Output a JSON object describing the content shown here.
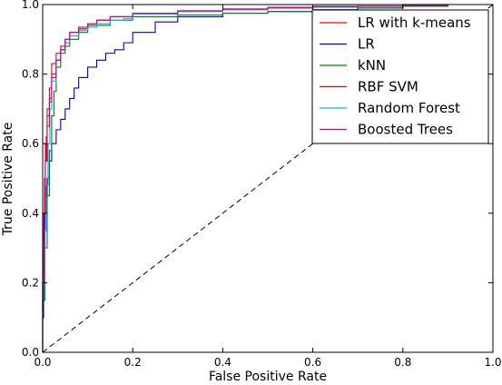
{
  "chart_data": {
    "type": "line",
    "title": "",
    "xlabel": "False Positive Rate",
    "ylabel": "True Positive Rate",
    "xlim": [
      0,
      1
    ],
    "ylim": [
      0,
      1
    ],
    "xticks": [
      "0.0",
      "0.2",
      "0.4",
      "0.6",
      "0.8",
      "1.0"
    ],
    "yticks": [
      "0.0",
      "0.2",
      "0.4",
      "0.6",
      "0.8",
      "1.0"
    ],
    "grid": false,
    "legend_position": "top-right",
    "reference_line": {
      "style": "dashed",
      "color": "#000000",
      "x": [
        0,
        1
      ],
      "y": [
        0,
        1
      ]
    },
    "series": [
      {
        "name": "LR with k-means",
        "color": "#ff0000",
        "x": [
          0,
          0.002,
          0.004,
          0.006,
          0.008,
          0.01,
          0.015,
          0.02,
          0.03,
          0.04,
          0.05,
          0.06,
          0.08,
          0.1,
          0.12,
          0.15,
          0.2,
          0.3,
          0.4,
          0.5,
          0.6,
          0.7,
          0.8,
          0.9,
          1.0
        ],
        "y": [
          0,
          0.15,
          0.3,
          0.45,
          0.55,
          0.62,
          0.7,
          0.76,
          0.83,
          0.86,
          0.88,
          0.9,
          0.92,
          0.93,
          0.94,
          0.955,
          0.965,
          0.975,
          0.98,
          0.985,
          0.99,
          0.993,
          0.995,
          0.998,
          1.0
        ]
      },
      {
        "name": "LR",
        "color": "#0000cc",
        "x": [
          0,
          0.002,
          0.005,
          0.01,
          0.015,
          0.02,
          0.03,
          0.04,
          0.05,
          0.06,
          0.07,
          0.08,
          0.1,
          0.12,
          0.14,
          0.16,
          0.18,
          0.2,
          0.25,
          0.3,
          0.4,
          0.5,
          0.6,
          0.7,
          0.8,
          0.9,
          1.0
        ],
        "y": [
          0,
          0.1,
          0.25,
          0.4,
          0.5,
          0.55,
          0.6,
          0.64,
          0.67,
          0.7,
          0.73,
          0.76,
          0.79,
          0.82,
          0.84,
          0.86,
          0.87,
          0.89,
          0.92,
          0.95,
          0.965,
          0.975,
          0.98,
          0.985,
          0.99,
          0.995,
          1.0
        ]
      },
      {
        "name": "kNN",
        "color": "#008000",
        "x": [
          0,
          0.005,
          0.01,
          0.015,
          0.02,
          0.025,
          0.03,
          0.04,
          0.05,
          0.06,
          0.08,
          0.1,
          0.15,
          0.2,
          0.3,
          0.4,
          0.5,
          0.6,
          0.7,
          0.8,
          0.9,
          1.0
        ],
        "y": [
          0,
          0.15,
          0.3,
          0.45,
          0.58,
          0.68,
          0.75,
          0.82,
          0.86,
          0.88,
          0.9,
          0.92,
          0.94,
          0.955,
          0.965,
          0.97,
          0.975,
          0.98,
          0.985,
          0.99,
          0.995,
          1.0
        ]
      },
      {
        "name": "RBF SVM",
        "color": "#ff0000",
        "x": [
          0,
          0.002,
          0.004,
          0.006,
          0.01,
          0.015,
          0.02,
          0.03,
          0.04,
          0.05,
          0.06,
          0.08,
          0.1,
          0.12,
          0.15,
          0.2,
          0.3,
          0.4,
          0.5,
          0.6,
          0.8,
          1.0
        ],
        "y": [
          0,
          0.2,
          0.4,
          0.5,
          0.6,
          0.68,
          0.73,
          0.8,
          0.84,
          0.87,
          0.89,
          0.91,
          0.93,
          0.945,
          0.955,
          0.965,
          0.975,
          0.982,
          0.987,
          0.992,
          0.996,
          1.0
        ]
      },
      {
        "name": "Random Forest",
        "color": "#00bfbf",
        "x": [
          0,
          0.004,
          0.008,
          0.012,
          0.016,
          0.02,
          0.03,
          0.04,
          0.05,
          0.06,
          0.08,
          0.1,
          0.12,
          0.15,
          0.18,
          0.2,
          0.3,
          0.4,
          0.5,
          0.6,
          0.8,
          1.0
        ],
        "y": [
          0,
          0.2,
          0.35,
          0.48,
          0.6,
          0.7,
          0.78,
          0.84,
          0.87,
          0.89,
          0.91,
          0.925,
          0.935,
          0.945,
          0.955,
          0.96,
          0.972,
          0.98,
          0.986,
          0.99,
          0.996,
          1.0
        ]
      },
      {
        "name": "Boosted Trees",
        "color": "#bf00bf",
        "x": [
          0,
          0.003,
          0.006,
          0.01,
          0.015,
          0.02,
          0.03,
          0.04,
          0.05,
          0.06,
          0.08,
          0.1,
          0.12,
          0.15,
          0.2,
          0.3,
          0.4,
          0.5,
          0.6,
          0.7,
          0.8,
          0.9,
          1.0
        ],
        "y": [
          0,
          0.2,
          0.4,
          0.55,
          0.65,
          0.72,
          0.79,
          0.84,
          0.87,
          0.9,
          0.92,
          0.935,
          0.945,
          0.955,
          0.965,
          0.975,
          0.982,
          0.987,
          0.99,
          0.993,
          0.996,
          0.998,
          1.0
        ]
      }
    ]
  }
}
